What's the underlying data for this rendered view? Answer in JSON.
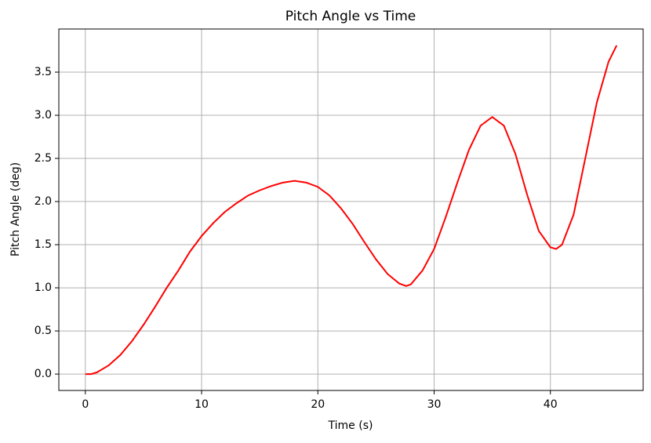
{
  "chart_data": {
    "type": "line",
    "title": "Pitch Angle vs Time",
    "x_label": "Time (s)",
    "y_label": "Pitch Angle (deg)",
    "x": [
      0,
      0.5,
      1,
      2,
      3,
      4,
      5,
      6,
      7,
      8,
      9,
      10,
      11,
      12,
      13,
      14,
      15,
      16,
      17,
      18,
      19,
      20,
      21,
      22,
      23,
      24,
      25,
      26,
      27,
      27.6,
      28,
      29,
      30,
      31,
      32,
      33,
      34,
      35,
      36,
      37,
      38,
      39,
      40,
      40.5,
      41,
      42,
      43,
      44,
      45,
      45.7
    ],
    "values": [
      0,
      0.0,
      0.02,
      0.1,
      0.22,
      0.38,
      0.57,
      0.78,
      1.0,
      1.2,
      1.42,
      1.6,
      1.75,
      1.88,
      1.98,
      2.07,
      2.13,
      2.18,
      2.22,
      2.24,
      2.22,
      2.17,
      2.07,
      1.92,
      1.74,
      1.53,
      1.33,
      1.16,
      1.05,
      1.02,
      1.04,
      1.2,
      1.45,
      1.82,
      2.22,
      2.6,
      2.88,
      2.98,
      2.88,
      2.55,
      2.08,
      1.66,
      1.47,
      1.45,
      1.5,
      1.85,
      2.5,
      3.15,
      3.62,
      3.81
    ],
    "color": "#ff0000",
    "xlim": [
      -2.28,
      47.98
    ],
    "xticks": [
      0,
      10,
      20,
      30,
      40
    ],
    "ylim": [
      -0.19,
      4.0
    ],
    "yticks": [
      {
        "value": 0,
        "label": "0.0"
      },
      0.5,
      {
        "value": 1,
        "label": "1.0"
      },
      1.5,
      {
        "value": 2,
        "label": "2.0"
      },
      2.5,
      {
        "value": 3,
        "label": "3.0"
      },
      3.5
    ],
    "grid": true
  }
}
